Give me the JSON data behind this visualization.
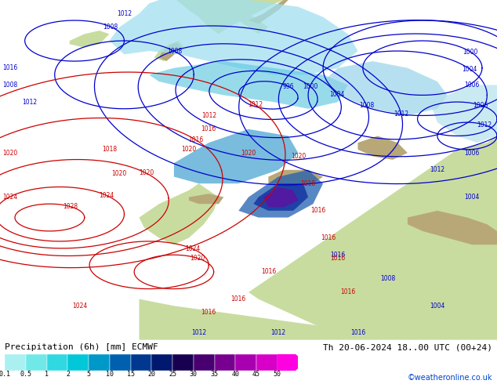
{
  "title_left": "Precipitation (6h) [mm] ECMWF",
  "title_right": "Th 20-06-2024 18..00 UTC (00+24)",
  "credit": "©weatheronline.co.uk",
  "colorbar_levels": [
    "0.1",
    "0.5",
    "1",
    "2",
    "5",
    "10",
    "15",
    "20",
    "25",
    "30",
    "35",
    "40",
    "45",
    "50"
  ],
  "colorbar_colors": [
    "#aaf0f0",
    "#70e8e8",
    "#30d8e0",
    "#00c8d8",
    "#0098c8",
    "#0060b0",
    "#003890",
    "#001870",
    "#180050",
    "#480070",
    "#780090",
    "#a800b0",
    "#d800c8",
    "#ff00e0"
  ],
  "sea_color": "#b8dce8",
  "land_color": "#c8dca0",
  "mountain_color": "#b8a878",
  "bg_color": "#ffffff",
  "figsize": [
    6.34,
    4.9
  ],
  "dpi": 100,
  "title_fontsize": 8,
  "credit_fontsize": 7,
  "tick_fontsize": 6,
  "isobar_fontsize": 5.5,
  "blue_isobar_color": "#0000cc",
  "red_isobar_color": "#cc0000"
}
